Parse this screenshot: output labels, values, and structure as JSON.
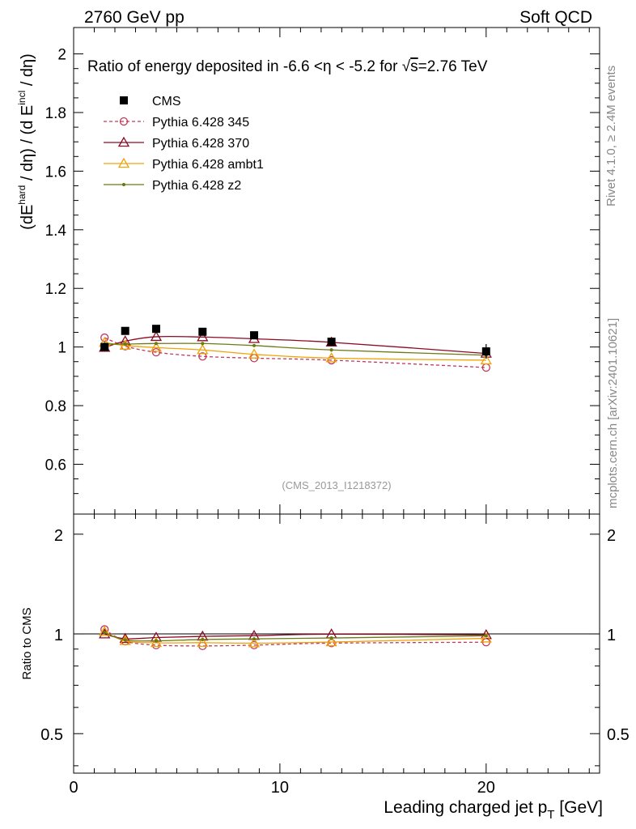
{
  "header": {
    "left": "2760 GeV pp",
    "right": "Soft QCD"
  },
  "side": {
    "top": "Rivet 4.1.0, ≥ 2.4M events",
    "bottom": "mcplots.cern.ch [arXiv:2401.10621]"
  },
  "chart_data": [
    {
      "type": "line",
      "title_parts": {
        "before": "Ratio of energy deposited in -6.6 <",
        "eta": "η",
        "middle": " < -5.2 for ",
        "sqrt": "√",
        "s": "s",
        "after": "=2.76 TeV"
      },
      "ylabel": {
        "p1": "(dE",
        "sup1": "hard",
        "p2": " / dη) / (d E",
        "sup2": "incl",
        "p3": " / dη)"
      },
      "xlim": [
        0,
        25.5
      ],
      "ylim": [
        0.43,
        2.09
      ],
      "yticks": [
        0.6,
        0.8,
        1,
        1.2,
        1.4,
        1.6,
        1.8,
        2
      ],
      "ytick_labels": [
        "0.6",
        "0.8",
        "1",
        "1.2",
        "1.4",
        "1.6",
        "1.8",
        "2"
      ],
      "watermark": "(CMS_2013_I1218372)",
      "cms": {
        "name": "CMS",
        "x": [
          1.5,
          2.5,
          4,
          6.25,
          8.75,
          12.5,
          20
        ],
        "y": [
          1.0,
          1.055,
          1.062,
          1.052,
          1.04,
          1.018,
          0.985
        ],
        "err": [
          0.012,
          0.01,
          0.01,
          0.01,
          0.01,
          0.012,
          0.025
        ]
      },
      "series": [
        {
          "name": "Pythia 6.428 345",
          "color": "#c0395b",
          "marker": "circle",
          "dash": true,
          "x": [
            1.5,
            2.5,
            4,
            6.25,
            8.75,
            12.5,
            20
          ],
          "y": [
            1.032,
            1.003,
            0.982,
            0.968,
            0.962,
            0.955,
            0.93
          ]
        },
        {
          "name": "Pythia 6.428 370",
          "color": "#8b0a24",
          "marker": "triangle",
          "dash": false,
          "x": [
            1.5,
            2.5,
            4,
            6.25,
            8.75,
            12.5,
            20
          ],
          "y": [
            0.998,
            1.02,
            1.035,
            1.034,
            1.028,
            1.016,
            0.978
          ]
        },
        {
          "name": "Pythia 6.428 ambt1",
          "color": "#f0a30a",
          "marker": "triangle",
          "dash": false,
          "x": [
            1.5,
            2.5,
            4,
            6.25,
            8.75,
            12.5,
            20
          ],
          "y": [
            1.015,
            1.005,
            0.998,
            0.99,
            0.975,
            0.962,
            0.955
          ]
        },
        {
          "name": "Pythia 6.428 z2",
          "color": "#6b7a12",
          "marker": "dot",
          "dash": false,
          "x": [
            1.5,
            2.5,
            4,
            6.25,
            8.75,
            12.5,
            20
          ],
          "y": [
            1.01,
            1.01,
            1.012,
            1.012,
            1.005,
            0.99,
            0.972
          ]
        }
      ]
    },
    {
      "type": "line",
      "ylabel": "Ratio to CMS",
      "xlabel_main": "Leading charged jet p",
      "xlabel_sub": "T",
      "xlabel_unit": " [GeV]",
      "xlim": [
        0,
        25.5
      ],
      "ylim": [
        0.38,
        2.3
      ],
      "ylog": true,
      "xticks": [
        0,
        10,
        20
      ],
      "xtick_labels": [
        "0",
        "10",
        "20"
      ],
      "yticks": [
        0.5,
        1,
        2
      ],
      "ytick_labels": [
        "0.5",
        "1",
        "2"
      ],
      "series": [
        {
          "name": "Pythia 6.428 345",
          "x": [
            1.5,
            2.5,
            4,
            6.25,
            8.75,
            12.5,
            20
          ],
          "y": [
            1.032,
            0.951,
            0.925,
            0.92,
            0.925,
            0.938,
            0.944
          ]
        },
        {
          "name": "Pythia 6.428 370",
          "x": [
            1.5,
            2.5,
            4,
            6.25,
            8.75,
            12.5,
            20
          ],
          "y": [
            0.998,
            0.967,
            0.975,
            0.983,
            0.988,
            0.998,
            0.993
          ]
        },
        {
          "name": "Pythia 6.428 ambt1",
          "x": [
            1.5,
            2.5,
            4,
            6.25,
            8.75,
            12.5,
            20
          ],
          "y": [
            1.015,
            0.953,
            0.94,
            0.941,
            0.938,
            0.945,
            0.97
          ]
        },
        {
          "name": "Pythia 6.428 z2",
          "x": [
            1.5,
            2.5,
            4,
            6.25,
            8.75,
            12.5,
            20
          ],
          "y": [
            1.01,
            0.958,
            0.953,
            0.962,
            0.966,
            0.972,
            0.987
          ]
        }
      ]
    }
  ]
}
